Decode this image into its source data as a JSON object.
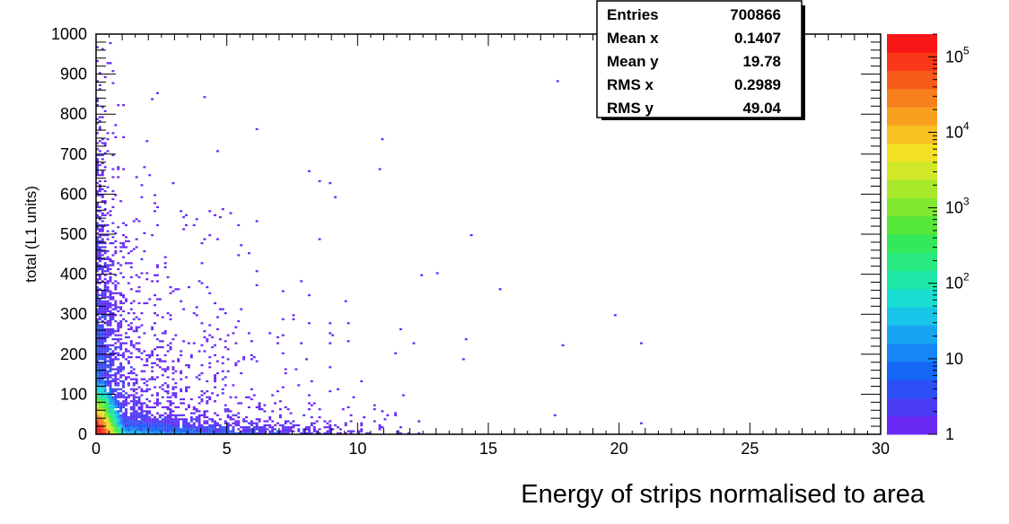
{
  "chart_data": {
    "type": "heatmap",
    "title": "",
    "xlabel": "Energy of strips normalised to area",
    "ylabel": "total (L1 units)",
    "xlim": [
      0,
      30
    ],
    "ylim": [
      0,
      1000
    ],
    "x_ticks": [
      "0",
      "5",
      "10",
      "15",
      "20",
      "25",
      "30"
    ],
    "y_ticks": [
      "0",
      "100",
      "200",
      "300",
      "400",
      "500",
      "600",
      "700",
      "800",
      "900",
      "1000"
    ],
    "grid": false,
    "colorbar": {
      "scale": "log",
      "range": [
        1,
        200000
      ],
      "tick_labels": [
        {
          "value": 1,
          "label": "1"
        },
        {
          "value": 10,
          "label": "10"
        },
        {
          "value": 100,
          "label": "10",
          "exp": "2"
        },
        {
          "value": 1000,
          "label": "10",
          "exp": "3"
        },
        {
          "value": 10000,
          "label": "10",
          "exp": "4"
        },
        {
          "value": 100000,
          "label": "10",
          "exp": "5"
        }
      ],
      "colors": [
        "#6a28f5",
        "#4a3cf5",
        "#2c4ff5",
        "#1466f5",
        "#1586f5",
        "#17a5f2",
        "#18c5e8",
        "#19ddd0",
        "#1ee8a8",
        "#28e880",
        "#33e85a",
        "#55e838",
        "#80e830",
        "#a8e82a",
        "#d0e828",
        "#f2e024",
        "#f8c020",
        "#f8a01e",
        "#f8801c",
        "#f85c1a",
        "#f83818",
        "#f81616"
      ]
    },
    "stats": [
      {
        "label": "Entries",
        "value": "700866"
      },
      {
        "label": "Mean x",
        "value": "0.1407"
      },
      {
        "label": "Mean y",
        "value": "19.78"
      },
      {
        "label": "RMS x",
        "value": "0.2989"
      },
      {
        "label": "RMS y",
        "value": "49.04"
      }
    ],
    "entries": 700866,
    "distribution": {
      "description_values": "approximate density: counts concentrated near x=0, y=0 with tail along x-axis and along y-axis",
      "dense_core": [
        [
          0.05,
          5,
          200000
        ],
        [
          0.1,
          10,
          30000
        ],
        [
          0.2,
          20,
          10000
        ],
        [
          0.3,
          40,
          3000
        ],
        [
          0.5,
          80,
          300
        ],
        [
          1.0,
          150,
          30
        ]
      ],
      "isolated_points": [
        [
          17.6,
          880
        ],
        [
          14.3,
          495
        ],
        [
          15.4,
          360
        ],
        [
          19.8,
          295
        ],
        [
          14.1,
          235
        ],
        [
          17.9,
          220
        ],
        [
          20.9,
          225
        ],
        [
          14.0,
          185
        ],
        [
          17.5,
          45
        ],
        [
          20.8,
          25
        ],
        [
          10.9,
          735
        ],
        [
          10.8,
          660
        ],
        [
          9.2,
          590
        ],
        [
          8.6,
          630
        ],
        [
          13.0,
          400
        ],
        [
          12.4,
          395
        ],
        [
          9.0,
          245
        ],
        [
          8.2,
          275
        ]
      ]
    }
  }
}
